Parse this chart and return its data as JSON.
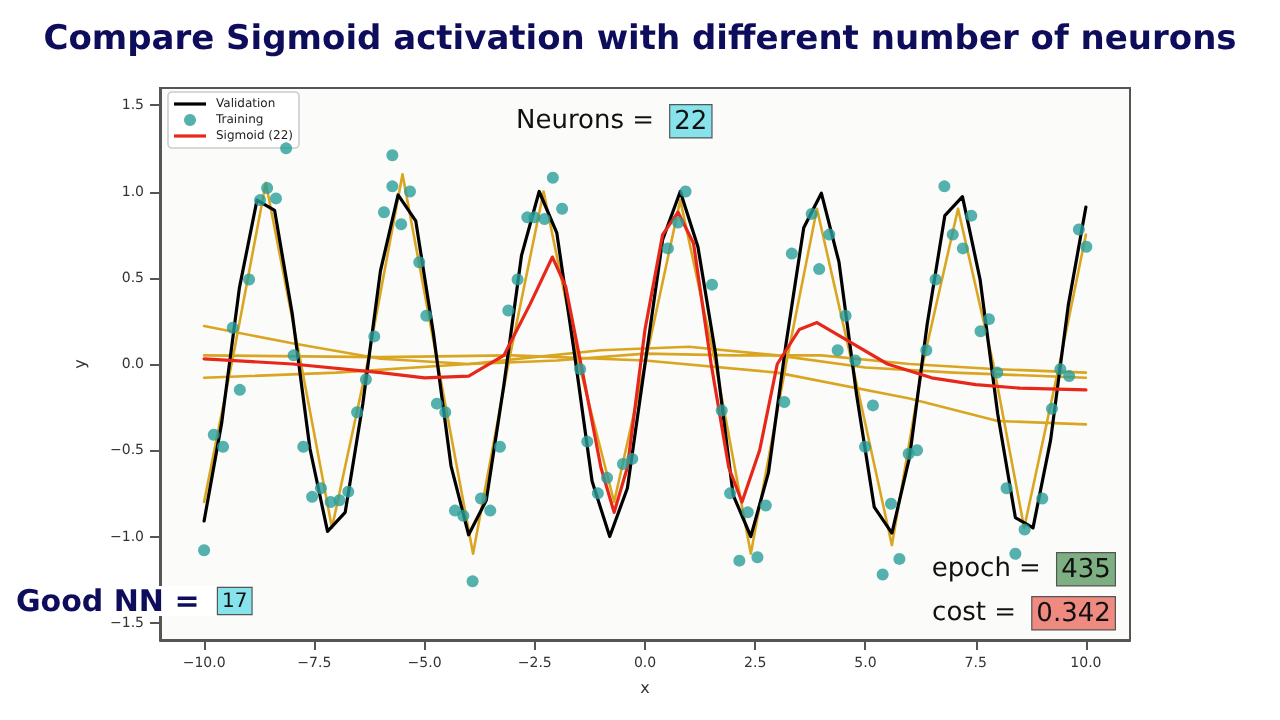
{
  "chart_data": {
    "type": "line",
    "title": "Compare Sigmoid activation with different number of neurons",
    "xlabel": "x",
    "ylabel": "y",
    "xlim": [
      -11,
      11
    ],
    "ylim": [
      -1.6,
      1.6
    ],
    "xticks": [
      {
        "value": -10,
        "label": "−10.0"
      },
      {
        "value": -7.5,
        "label": "−7.5"
      },
      {
        "value": -5,
        "label": "−5.0"
      },
      {
        "value": -2.5,
        "label": "−2.5"
      },
      {
        "value": 0,
        "label": "0.0"
      },
      {
        "value": 2.5,
        "label": "2.5"
      },
      {
        "value": 5,
        "label": "5.0"
      },
      {
        "value": 7.5,
        "label": "7.5"
      },
      {
        "value": 10,
        "label": "10.0"
      }
    ],
    "yticks": [
      {
        "value": -1.5,
        "label": "−1.5"
      },
      {
        "value": -1,
        "label": "−1.0"
      },
      {
        "value": -0.5,
        "label": "−0.5"
      },
      {
        "value": 0,
        "label": "0.0"
      },
      {
        "value": 0.5,
        "label": "0.5"
      },
      {
        "value": 1,
        "label": "1.0"
      },
      {
        "value": 1.5,
        "label": "1.5"
      }
    ],
    "grid": false,
    "legend": "top left",
    "annotations": [
      "Neurons = 22",
      "Good NN = 17",
      "epoch = 435",
      "cost = 0.342"
    ],
    "series": [
      {
        "color": "#daa520",
        "marker": "none",
        "x": [
          -10,
          -8,
          -6,
          -4,
          -2,
          0,
          2,
          4,
          6,
          8,
          10
        ],
        "values": [
          0.22,
          0.12,
          0.03,
          0.0,
          0.02,
          0.06,
          0.05,
          0.05,
          0.0,
          -0.03,
          -0.05
        ]
      },
      {
        "color": "#daa520",
        "marker": "none",
        "x": [
          -10,
          -7,
          -4,
          -1,
          1,
          3,
          5,
          7,
          10
        ],
        "values": [
          -0.08,
          -0.05,
          0.0,
          0.08,
          0.1,
          0.05,
          -0.02,
          -0.05,
          -0.08
        ]
      },
      {
        "color": "#daa520",
        "marker": "none",
        "x": [
          -10,
          -6,
          -3,
          0,
          3,
          6,
          8,
          10
        ],
        "values": [
          0.05,
          0.04,
          0.05,
          0.02,
          -0.05,
          -0.2,
          -0.33,
          -0.35
        ]
      },
      {
        "color": "#daa520",
        "marker": "none",
        "x": [
          -10,
          -9.3,
          -8.6,
          -7.8,
          -7.1,
          -6.3,
          -5.5,
          -4.7,
          -3.9,
          -3.1,
          -2.3,
          -1.5,
          -0.7,
          0,
          0.8,
          1.6,
          2.4,
          3.2,
          3.9,
          4.7,
          5.6,
          6.3,
          7.1,
          7.9,
          8.6,
          9.4,
          10
        ],
        "values": [
          -0.8,
          0.1,
          1.05,
          0.0,
          -0.95,
          0.0,
          1.1,
          0.0,
          -1.1,
          0.0,
          1.0,
          0.0,
          -0.8,
          0.0,
          0.95,
          0.0,
          -1.1,
          0.0,
          0.9,
          0.0,
          -1.05,
          0.0,
          0.9,
          0.0,
          -0.95,
          0.0,
          0.75
        ]
      },
      {
        "name": "Validation",
        "color": "#000000",
        "marker": "none",
        "x": [
          -10,
          -9.6,
          -9.2,
          -8.8,
          -8.4,
          -8,
          -7.6,
          -7.2,
          -6.8,
          -6.4,
          -6,
          -5.6,
          -5.2,
          -4.8,
          -4.4,
          -4,
          -3.6,
          -3.2,
          -2.8,
          -2.4,
          -2,
          -1.6,
          -1.2,
          -0.8,
          -0.4,
          0,
          0.4,
          0.8,
          1.2,
          1.6,
          2,
          2.4,
          2.8,
          3.2,
          3.6,
          4,
          4.4,
          4.8,
          5.2,
          5.6,
          6,
          6.4,
          6.8,
          7.2,
          7.6,
          8,
          8.4,
          8.8,
          9.2,
          9.6,
          10
        ],
        "values": [
          -0.91,
          -0.34,
          0.44,
          0.95,
          0.89,
          0.29,
          -0.49,
          -0.97,
          -0.86,
          -0.23,
          0.54,
          0.98,
          0.83,
          0.18,
          -0.59,
          -0.99,
          -0.79,
          -0.12,
          0.63,
          1.0,
          0.76,
          0.06,
          -0.68,
          -1.0,
          -0.72,
          0.0,
          0.72,
          1.0,
          0.68,
          0.06,
          -0.76,
          -1.0,
          -0.63,
          0.12,
          0.79,
          0.99,
          0.59,
          -0.18,
          -0.83,
          -0.98,
          -0.54,
          0.23,
          0.86,
          0.97,
          0.49,
          -0.29,
          -0.89,
          -0.95,
          -0.44,
          0.34,
          0.91
        ]
      },
      {
        "name": "Training",
        "type": "scatter",
        "color": "#2a9d9a",
        "marker": "circle",
        "x": [
          -9.35,
          -8.98,
          -8.57,
          -8.73,
          -8.37,
          -8.14,
          -7.97,
          -6.14,
          -5.92,
          -5.73,
          -5.73,
          -5.53,
          -5.33,
          -5.12,
          -4.96,
          -3.1,
          -2.89,
          -2.67,
          -2.51,
          -2.28,
          -2.09,
          -1.88,
          -1.47,
          -10.0,
          -9.78,
          -9.57,
          -9.19,
          -7.75,
          -7.55,
          -7.35,
          -7.13,
          -6.93,
          -6.73,
          -6.53,
          -6.33,
          -4.72,
          -4.53,
          -4.31,
          -4.12,
          -3.91,
          -3.72,
          -3.51,
          -3.29,
          -1.31,
          -1.07,
          -0.86,
          -0.5,
          -0.29,
          1.74,
          1.93,
          2.14,
          2.33,
          2.55,
          2.74,
          3.16,
          4.37,
          4.77,
          5.17,
          4.99,
          5.39,
          5.58,
          5.77,
          5.98,
          6.17,
          6.38,
          7.99,
          8.2,
          8.4,
          8.61,
          9.01,
          9.23,
          9.42,
          9.62,
          0.92,
          0.75,
          0.52,
          1.52,
          3.33,
          3.78,
          4.18,
          3.95,
          4.55,
          6.59,
          6.79,
          6.98,
          7.21,
          7.4,
          7.8,
          7.61,
          9.84,
          10.01
        ],
        "values": [
          0.21,
          0.49,
          1.02,
          0.95,
          0.96,
          1.25,
          0.05,
          0.16,
          0.88,
          1.03,
          1.21,
          0.81,
          1.0,
          0.59,
          0.28,
          0.31,
          0.49,
          0.85,
          0.85,
          0.84,
          1.08,
          0.9,
          -0.03,
          -1.08,
          -0.41,
          -0.48,
          -0.15,
          -0.48,
          -0.77,
          -0.72,
          -0.8,
          -0.79,
          -0.74,
          -0.28,
          -0.09,
          -0.23,
          -0.28,
          -0.85,
          -0.88,
          -1.26,
          -0.78,
          -0.85,
          -0.48,
          -0.45,
          -0.75,
          -0.66,
          -0.58,
          -0.55,
          -0.27,
          -0.75,
          -1.14,
          -0.86,
          -1.12,
          -0.82,
          -0.22,
          0.08,
          0.02,
          -0.24,
          -0.48,
          -1.22,
          -0.81,
          -1.13,
          -0.52,
          -0.5,
          0.08,
          -0.05,
          -0.72,
          -1.1,
          -0.96,
          -0.78,
          -0.26,
          -0.03,
          -0.07,
          1.0,
          0.82,
          0.67,
          0.46,
          0.64,
          0.87,
          0.75,
          0.55,
          0.28,
          0.49,
          1.03,
          0.75,
          0.67,
          0.86,
          0.26,
          0.19,
          0.78,
          0.68
        ]
      },
      {
        "name": "Sigmoid (22)",
        "color": "#e8271b",
        "marker": "none",
        "x": [
          -10,
          -8,
          -6,
          -5,
          -4,
          -3.2,
          -2.6,
          -2.1,
          -1.8,
          -1.3,
          -1.0,
          -0.7,
          -0.4,
          0,
          0.4,
          0.75,
          1.1,
          1.5,
          1.9,
          2.2,
          2.6,
          3.0,
          3.5,
          3.9,
          4.5,
          5.5,
          6.5,
          7.5,
          8.5,
          10
        ],
        "values": [
          0.03,
          0.0,
          -0.05,
          -0.08,
          -0.07,
          0.05,
          0.35,
          0.62,
          0.45,
          -0.2,
          -0.6,
          -0.86,
          -0.6,
          0.2,
          0.75,
          0.88,
          0.7,
          0.0,
          -0.6,
          -0.8,
          -0.5,
          0.0,
          0.2,
          0.24,
          0.15,
          0.0,
          -0.08,
          -0.12,
          -0.14,
          -0.15
        ]
      }
    ]
  }
}
